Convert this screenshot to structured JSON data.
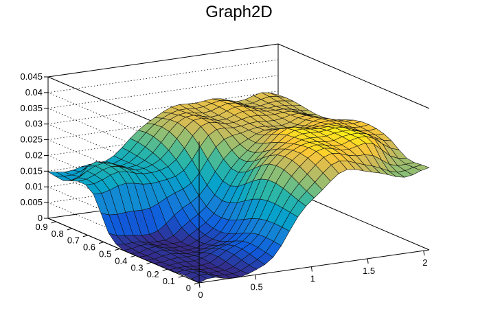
{
  "chart_data": {
    "type": "surface",
    "title": "Graph2D",
    "xlabel": "",
    "ylabel": "",
    "zlabel": "",
    "xlim": [
      0,
      2.05
    ],
    "ylim": [
      0,
      0.95
    ],
    "zlim": [
      0,
      0.045
    ],
    "grid": true,
    "colormap": "kBird (blue-green-yellow)",
    "x_ticks": [
      "0",
      "0.5",
      "1",
      "1.5",
      "2"
    ],
    "y_ticks": [
      "0",
      "0.1",
      "0.2",
      "0.3",
      "0.4",
      "0.5",
      "0.6",
      "0.7",
      "0.8",
      "0.9"
    ],
    "z_ticks": [
      "0",
      "0.005",
      "0.01",
      "0.015",
      "0.02",
      "0.025",
      "0.03",
      "0.035",
      "0.04",
      "0.045"
    ],
    "surface_features": [
      {
        "x": 0.0,
        "y": 0.05,
        "z": 0.0
      },
      {
        "x": 0.25,
        "y": 0.45,
        "z": 0.0
      },
      {
        "x": 0.1,
        "y": 0.9,
        "z": 0.014
      },
      {
        "x": 0.25,
        "y": 0.8,
        "z": 0.018
      },
      {
        "x": 1.3,
        "y": 0.85,
        "z": 0.03
      },
      {
        "x": 1.6,
        "y": 0.25,
        "z": 0.033
      },
      {
        "x": 2.0,
        "y": 0.0,
        "z": 0.025
      }
    ]
  }
}
